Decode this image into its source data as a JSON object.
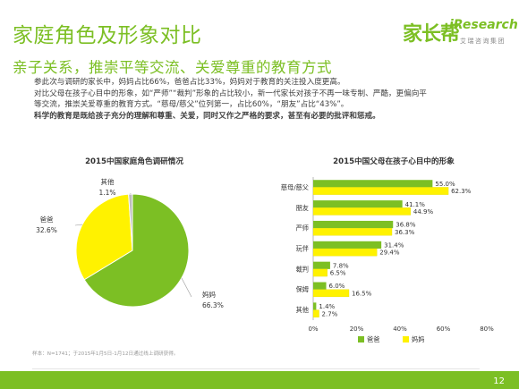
{
  "header": {
    "title": "家庭角色及形象对比",
    "subtitle": "亲子关系，推崇平等交流、关爱尊重的教育方式",
    "logo_brand": "家长帮",
    "logo_ir": "iResearch",
    "logo_ir_sub": "艾瑞咨询集团"
  },
  "body": {
    "line1": "参此次与调研的家长中，妈妈占比66%，爸爸占比33%，妈妈对于教育的关注投入度更高。",
    "line2": "对比父母在孩子心目中的形象，如“严师”“裁判”形象的占比较小，新一代家长对孩子不再一味专制、严酷，更偏向平",
    "line3": "等交流，推崇关爱尊重的教育方式。“慈母/慈父”位列第一，占比60%，“朋友”占比“43%”。",
    "line4": "科学的教育是既给孩子充分的理解和尊重、关爱，同时又作之严格的要求，甚至有必要的批评和惩戒。"
  },
  "colors": {
    "green": "#7cbf24",
    "yellow": "#fff200",
    "gray": "#bdbdbd"
  },
  "chart_data": [
    {
      "type": "pie",
      "title": "2015中国家庭角色调研情况",
      "slices": [
        {
          "label": "妈妈",
          "value": 66.3,
          "display": "66.3%",
          "color": "#7cbf24"
        },
        {
          "label": "爸爸",
          "value": 32.6,
          "display": "32.6%",
          "color": "#fff200"
        },
        {
          "label": "其他",
          "value": 1.1,
          "display": "1.1%",
          "color": "#bdbdbd"
        }
      ]
    },
    {
      "type": "bar",
      "orientation": "horizontal",
      "title": "2015中国父母在孩子心目中的形象",
      "categories": [
        "慈母/慈父",
        "朋友",
        "严师",
        "玩伴",
        "裁判",
        "保姆",
        "其他"
      ],
      "series": [
        {
          "name": "爸爸",
          "color": "#7cbf24",
          "values": [
            55.0,
            41.1,
            36.8,
            31.4,
            7.8,
            6.0,
            1.4
          ],
          "labels": [
            "55.0%",
            "41.1%",
            "36.8%",
            "31.4%",
            "7.8%",
            "6.0%",
            "1.4%"
          ]
        },
        {
          "name": "妈妈",
          "color": "#fff200",
          "values": [
            62.3,
            44.9,
            36.3,
            29.4,
            6.5,
            16.5,
            2.7
          ],
          "labels": [
            "62.3%",
            "44.9%",
            "36.3%",
            "29.4%",
            "6.5%",
            "16.5%",
            "2.7%"
          ]
        }
      ],
      "xticks": [
        "0%",
        "20%",
        "40%",
        "60%",
        "80%"
      ],
      "xlim": [
        0,
        80
      ],
      "legend": "bottom"
    }
  ],
  "source": "样本：N=1741；于2015年1月5日-1月12日通过线上调研获得。",
  "page_number": "12"
}
